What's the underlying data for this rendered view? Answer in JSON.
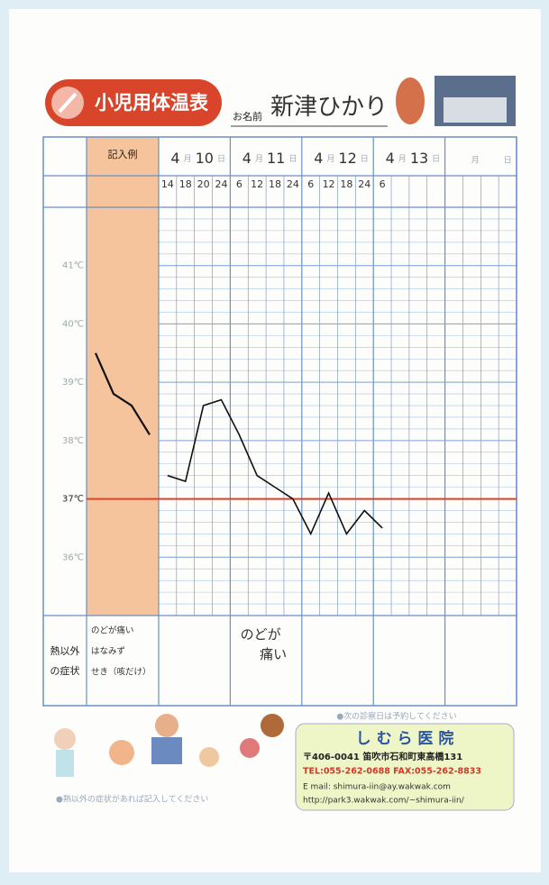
{
  "header": {
    "title": "小児用体温表",
    "name_label": "お名前",
    "name": "新津ひかり"
  },
  "chart_data": {
    "type": "line",
    "example_label": "記入例",
    "days": [
      {
        "month": "4",
        "day": "10"
      },
      {
        "month": "4",
        "day": "11"
      },
      {
        "month": "4",
        "day": "12"
      },
      {
        "month": "4",
        "day": "13"
      }
    ],
    "month_unit": "月",
    "day_unit": "日",
    "categories": [
      "14",
      "18",
      "20",
      "24",
      "6",
      "12",
      "18",
      "24",
      "6",
      "12",
      "18",
      "24",
      "6",
      null,
      null,
      null,
      null,
      null,
      null,
      null
    ],
    "series": [
      {
        "color": "#111111",
        "values": [
          37.4,
          37.3,
          38.6,
          38.7,
          38.1,
          37.4,
          37.2,
          37.0,
          36.4,
          37.1,
          36.4,
          36.8,
          36.5,
          null,
          null,
          null,
          null,
          null,
          null,
          null
        ]
      }
    ],
    "example_values": [
      39.5,
      38.8,
      38.6,
      38.1
    ],
    "ylim": [
      35,
      42
    ],
    "yticks": [
      {
        "value": 41,
        "label": "41℃"
      },
      {
        "value": 40,
        "label": "40℃"
      },
      {
        "value": 39,
        "label": "39℃"
      },
      {
        "value": 38,
        "label": "38℃"
      },
      {
        "value": 37,
        "label": "37℃"
      },
      {
        "value": 36,
        "label": "36℃"
      }
    ],
    "reference_line": {
      "value": 37,
      "color": "#e0402a"
    }
  },
  "symptoms": {
    "label": "熱以外の症状",
    "examples": [
      "のどが痛い",
      "はなみず",
      "せき（咳だけ）"
    ],
    "entries": [
      {
        "day_index": 1,
        "text": "のどが痛い"
      }
    ]
  },
  "footer": {
    "note_top": "●次の診察日は予約してください",
    "note_bottom": "●熱以外の症状があれば記入してください",
    "clinic": "し む ら 医 院",
    "address": "〒406-0041 笛吹市石和町東高橋131",
    "tel": "TEL:055-262-0688 FAX:055-262-8833",
    "email": "E mail: shimura-iin@ay.wakwak.com",
    "url": "http://park3.wakwak.com/~shimura-iin/"
  }
}
